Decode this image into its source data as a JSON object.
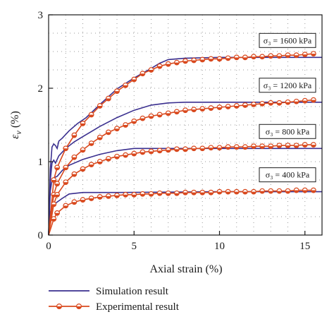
{
  "chart_data": {
    "type": "line",
    "xlabel": "Axial strain (%)",
    "ylabel": "ε_v (%)",
    "xlim": [
      0,
      16
    ],
    "ylim": [
      0,
      3
    ],
    "x_ticks": [
      0,
      5,
      10,
      15
    ],
    "y_ticks": [
      0,
      1,
      2,
      3
    ],
    "grid": "dotted",
    "annotations": [
      {
        "label": "σ₃ = 1600 kPa",
        "at_y": 2.42
      },
      {
        "label": "σ₃ = 1200 kPa",
        "at_y": 1.81
      },
      {
        "label": "σ₃ = 800 kPa",
        "at_y": 1.18
      },
      {
        "label": "σ₃ = 400 kPa",
        "at_y": 0.59
      }
    ],
    "legend": {
      "placement": "bottom",
      "entries": [
        {
          "label": "Simulation result",
          "color": "#3a2f8f",
          "style": "line"
        },
        {
          "label": "Experimental result",
          "color": "#d9491e",
          "style": "line-marker"
        }
      ]
    },
    "series": [
      {
        "kind": "simulation",
        "color": "#3a2f8f",
        "points": [
          [
            0,
            0
          ],
          [
            0.1,
            0.9
          ],
          [
            0.2,
            1.2
          ],
          [
            0.3,
            1.24
          ],
          [
            0.4,
            1.22
          ],
          [
            0.5,
            1.18
          ],
          [
            0.6,
            1.28
          ],
          [
            0.8,
            1.32
          ],
          [
            1.2,
            1.42
          ],
          [
            1.7,
            1.52
          ],
          [
            2.2,
            1.6
          ],
          [
            3,
            1.78
          ],
          [
            4,
            1.99
          ],
          [
            5,
            2.14
          ],
          [
            6,
            2.27
          ],
          [
            6.5,
            2.34
          ],
          [
            7,
            2.39
          ],
          [
            8,
            2.41
          ],
          [
            10,
            2.42
          ],
          [
            12,
            2.42
          ],
          [
            15,
            2.42
          ],
          [
            16,
            2.42
          ]
        ]
      },
      {
        "kind": "simulation",
        "color": "#3a2f8f",
        "points": [
          [
            0,
            0
          ],
          [
            0.1,
            0.75
          ],
          [
            0.2,
            0.98
          ],
          [
            0.3,
            1.02
          ],
          [
            0.4,
            0.98
          ],
          [
            0.6,
            1.08
          ],
          [
            1,
            1.18
          ],
          [
            1.5,
            1.27
          ],
          [
            2,
            1.34
          ],
          [
            3,
            1.48
          ],
          [
            4,
            1.6
          ],
          [
            5,
            1.7
          ],
          [
            6,
            1.77
          ],
          [
            7,
            1.8
          ],
          [
            8,
            1.81
          ],
          [
            10,
            1.81
          ],
          [
            15,
            1.81
          ],
          [
            16,
            1.81
          ]
        ]
      },
      {
        "kind": "simulation",
        "color": "#3a2f8f",
        "points": [
          [
            0,
            0
          ],
          [
            0.1,
            0.6
          ],
          [
            0.2,
            0.75
          ],
          [
            0.3,
            0.78
          ],
          [
            0.5,
            0.8
          ],
          [
            0.8,
            0.88
          ],
          [
            1.2,
            0.95
          ],
          [
            2,
            1.03
          ],
          [
            3,
            1.1
          ],
          [
            4,
            1.15
          ],
          [
            5,
            1.18
          ],
          [
            6,
            1.18
          ],
          [
            10,
            1.18
          ],
          [
            16,
            1.18
          ]
        ]
      },
      {
        "kind": "simulation",
        "color": "#3a2f8f",
        "points": [
          [
            0,
            0
          ],
          [
            0.1,
            0.3
          ],
          [
            0.2,
            0.4
          ],
          [
            0.35,
            0.42
          ],
          [
            0.5,
            0.45
          ],
          [
            0.8,
            0.5
          ],
          [
            1.2,
            0.56
          ],
          [
            2,
            0.58
          ],
          [
            4,
            0.58
          ],
          [
            10,
            0.59
          ],
          [
            16,
            0.59
          ]
        ]
      },
      {
        "kind": "experimental",
        "color": "#d9491e",
        "points": [
          [
            0,
            0
          ],
          [
            0.3,
            0.75
          ],
          [
            0.5,
            0.92
          ],
          [
            1,
            1.18
          ],
          [
            1.5,
            1.36
          ],
          [
            2,
            1.52
          ],
          [
            2.5,
            1.64
          ],
          [
            3,
            1.76
          ],
          [
            3.5,
            1.86
          ],
          [
            4,
            1.96
          ],
          [
            4.5,
            2.04
          ],
          [
            5,
            2.12
          ],
          [
            5.5,
            2.2
          ],
          [
            6,
            2.25
          ],
          [
            6.5,
            2.3
          ],
          [
            7,
            2.33
          ],
          [
            7.5,
            2.35
          ],
          [
            8,
            2.37
          ],
          [
            8.5,
            2.38
          ],
          [
            9,
            2.39
          ],
          [
            9.5,
            2.4
          ],
          [
            10,
            2.4
          ],
          [
            10.5,
            2.41
          ],
          [
            11,
            2.42
          ],
          [
            11.5,
            2.42
          ],
          [
            12,
            2.43
          ],
          [
            12.5,
            2.43
          ],
          [
            13,
            2.44
          ],
          [
            13.5,
            2.44
          ],
          [
            14,
            2.45
          ],
          [
            14.5,
            2.45
          ],
          [
            15,
            2.46
          ],
          [
            15.5,
            2.47
          ]
        ]
      },
      {
        "kind": "experimental",
        "color": "#d9491e",
        "points": [
          [
            0,
            0
          ],
          [
            0.3,
            0.55
          ],
          [
            0.5,
            0.7
          ],
          [
            1,
            0.92
          ],
          [
            1.5,
            1.06
          ],
          [
            2,
            1.16
          ],
          [
            2.5,
            1.25
          ],
          [
            3,
            1.33
          ],
          [
            3.5,
            1.4
          ],
          [
            4,
            1.45
          ],
          [
            4.5,
            1.5
          ],
          [
            5,
            1.55
          ],
          [
            5.5,
            1.59
          ],
          [
            6,
            1.62
          ],
          [
            6.5,
            1.64
          ],
          [
            7,
            1.66
          ],
          [
            7.5,
            1.68
          ],
          [
            8,
            1.7
          ],
          [
            8.5,
            1.71
          ],
          [
            9,
            1.72
          ],
          [
            9.5,
            1.73
          ],
          [
            10,
            1.74
          ],
          [
            10.5,
            1.75
          ],
          [
            11,
            1.76
          ],
          [
            11.5,
            1.77
          ],
          [
            12,
            1.78
          ],
          [
            12.5,
            1.79
          ],
          [
            13,
            1.8
          ],
          [
            13.5,
            1.8
          ],
          [
            14,
            1.81
          ],
          [
            14.5,
            1.82
          ],
          [
            15,
            1.83
          ],
          [
            15.5,
            1.84
          ]
        ]
      },
      {
        "kind": "experimental",
        "color": "#d9491e",
        "points": [
          [
            0,
            0
          ],
          [
            0.3,
            0.42
          ],
          [
            0.5,
            0.55
          ],
          [
            1,
            0.72
          ],
          [
            1.5,
            0.83
          ],
          [
            2,
            0.9
          ],
          [
            2.5,
            0.96
          ],
          [
            3,
            1
          ],
          [
            3.5,
            1.04
          ],
          [
            4,
            1.07
          ],
          [
            4.5,
            1.09
          ],
          [
            5,
            1.11
          ],
          [
            5.5,
            1.13
          ],
          [
            6,
            1.14
          ],
          [
            6.5,
            1.15
          ],
          [
            7,
            1.16
          ],
          [
            7.5,
            1.17
          ],
          [
            8,
            1.17
          ],
          [
            8.5,
            1.18
          ],
          [
            9,
            1.18
          ],
          [
            9.5,
            1.19
          ],
          [
            10,
            1.19
          ],
          [
            10.5,
            1.2
          ],
          [
            11,
            1.2
          ],
          [
            11.5,
            1.2
          ],
          [
            12,
            1.21
          ],
          [
            12.5,
            1.21
          ],
          [
            13,
            1.21
          ],
          [
            13.5,
            1.22
          ],
          [
            14,
            1.22
          ],
          [
            14.5,
            1.22
          ],
          [
            15,
            1.23
          ],
          [
            15.5,
            1.23
          ]
        ]
      },
      {
        "kind": "experimental",
        "color": "#d9491e",
        "points": [
          [
            0,
            0
          ],
          [
            0.3,
            0.22
          ],
          [
            0.5,
            0.3
          ],
          [
            1,
            0.4
          ],
          [
            1.5,
            0.45
          ],
          [
            2,
            0.48
          ],
          [
            2.5,
            0.5
          ],
          [
            3,
            0.52
          ],
          [
            3.5,
            0.53
          ],
          [
            4,
            0.54
          ],
          [
            4.5,
            0.55
          ],
          [
            5,
            0.55
          ],
          [
            5.5,
            0.56
          ],
          [
            6,
            0.56
          ],
          [
            6.5,
            0.57
          ],
          [
            7,
            0.57
          ],
          [
            7.5,
            0.57
          ],
          [
            8,
            0.58
          ],
          [
            8.5,
            0.58
          ],
          [
            9,
            0.58
          ],
          [
            9.5,
            0.58
          ],
          [
            10,
            0.59
          ],
          [
            10.5,
            0.59
          ],
          [
            11,
            0.59
          ],
          [
            11.5,
            0.59
          ],
          [
            12,
            0.59
          ],
          [
            12.5,
            0.6
          ],
          [
            13,
            0.6
          ],
          [
            13.5,
            0.6
          ],
          [
            14,
            0.6
          ],
          [
            14.5,
            0.61
          ],
          [
            15,
            0.61
          ],
          [
            15.5,
            0.61
          ]
        ]
      }
    ]
  }
}
